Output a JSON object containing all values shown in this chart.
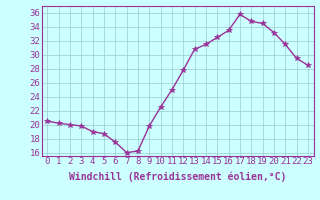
{
  "x": [
    0,
    1,
    2,
    3,
    4,
    5,
    6,
    7,
    8,
    9,
    10,
    11,
    12,
    13,
    14,
    15,
    16,
    17,
    18,
    19,
    20,
    21,
    22,
    23
  ],
  "y": [
    20.5,
    20.2,
    20.0,
    19.8,
    19.0,
    18.7,
    17.5,
    16.0,
    16.2,
    19.8,
    22.5,
    25.0,
    27.8,
    30.8,
    31.5,
    32.5,
    33.5,
    35.8,
    34.8,
    34.5,
    33.2,
    31.5,
    29.5,
    28.5
  ],
  "line_color": "#993399",
  "marker": "*",
  "marker_size": 4,
  "bg_color": "#ccffff",
  "plot_bg_color": "#ccffff",
  "grid_color": "#99cccc",
  "xlabel": "Windchill (Refroidissement éolien,°C)",
  "ylim": [
    15.5,
    37
  ],
  "xlim": [
    -0.5,
    23.5
  ],
  "yticks": [
    16,
    18,
    20,
    22,
    24,
    26,
    28,
    30,
    32,
    34,
    36
  ],
  "xticks": [
    0,
    1,
    2,
    3,
    4,
    5,
    6,
    7,
    8,
    9,
    10,
    11,
    12,
    13,
    14,
    15,
    16,
    17,
    18,
    19,
    20,
    21,
    22,
    23
  ],
  "tick_label_size": 6.5,
  "xlabel_size": 7.0,
  "line_width": 1.0
}
